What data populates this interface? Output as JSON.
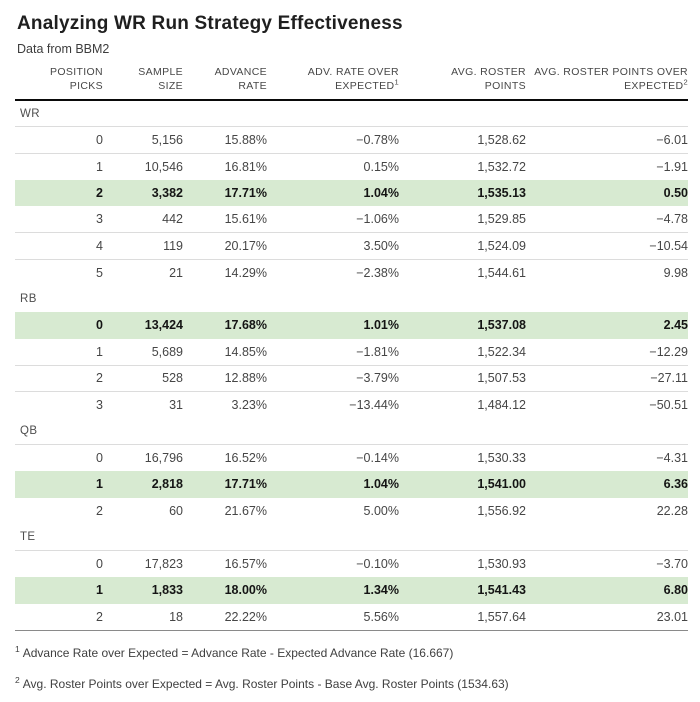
{
  "chart_data": {
    "type": "table",
    "title": "Analyzing WR Run Strategy Effectiveness",
    "subtitle": "Data from BBM2",
    "highlight_color": "#d7ead1",
    "columns": [
      {
        "line1": "POSITION",
        "line2": "PICKS",
        "sup": ""
      },
      {
        "line1": "SAMPLE",
        "line2": "SIZE",
        "sup": ""
      },
      {
        "line1": "ADVANCE",
        "line2": "RATE",
        "sup": ""
      },
      {
        "line1": "ADV. RATE OVER",
        "line2": "EXPECTED",
        "sup": "1"
      },
      {
        "line1": "AVG. ROSTER",
        "line2": "POINTS",
        "sup": ""
      },
      {
        "line1": "AVG. ROSTER POINTS OVER",
        "line2": "EXPECTED",
        "sup": "2"
      }
    ],
    "sections": [
      {
        "label": "WR",
        "rows": [
          {
            "highlight": false,
            "cells": [
              "0",
              "5,156",
              "15.88%",
              "−0.78%",
              "1,528.62",
              "−6.01"
            ]
          },
          {
            "highlight": false,
            "cells": [
              "1",
              "10,546",
              "16.81%",
              "0.15%",
              "1,532.72",
              "−1.91"
            ]
          },
          {
            "highlight": true,
            "cells": [
              "2",
              "3,382",
              "17.71%",
              "1.04%",
              "1,535.13",
              "0.50"
            ]
          },
          {
            "highlight": false,
            "cells": [
              "3",
              "442",
              "15.61%",
              "−1.06%",
              "1,529.85",
              "−4.78"
            ]
          },
          {
            "highlight": false,
            "cells": [
              "4",
              "119",
              "20.17%",
              "3.50%",
              "1,524.09",
              "−10.54"
            ]
          },
          {
            "highlight": false,
            "cells": [
              "5",
              "21",
              "14.29%",
              "−2.38%",
              "1,544.61",
              "9.98"
            ]
          }
        ]
      },
      {
        "label": "RB",
        "rows": [
          {
            "highlight": true,
            "cells": [
              "0",
              "13,424",
              "17.68%",
              "1.01%",
              "1,537.08",
              "2.45"
            ]
          },
          {
            "highlight": false,
            "cells": [
              "1",
              "5,689",
              "14.85%",
              "−1.81%",
              "1,522.34",
              "−12.29"
            ]
          },
          {
            "highlight": false,
            "cells": [
              "2",
              "528",
              "12.88%",
              "−3.79%",
              "1,507.53",
              "−27.11"
            ]
          },
          {
            "highlight": false,
            "cells": [
              "3",
              "31",
              "3.23%",
              "−13.44%",
              "1,484.12",
              "−50.51"
            ]
          }
        ]
      },
      {
        "label": "QB",
        "rows": [
          {
            "highlight": false,
            "cells": [
              "0",
              "16,796",
              "16.52%",
              "−0.14%",
              "1,530.33",
              "−4.31"
            ]
          },
          {
            "highlight": true,
            "cells": [
              "1",
              "2,818",
              "17.71%",
              "1.04%",
              "1,541.00",
              "6.36"
            ]
          },
          {
            "highlight": false,
            "cells": [
              "2",
              "60",
              "21.67%",
              "5.00%",
              "1,556.92",
              "22.28"
            ]
          }
        ]
      },
      {
        "label": "TE",
        "rows": [
          {
            "highlight": false,
            "cells": [
              "0",
              "17,823",
              "16.57%",
              "−0.10%",
              "1,530.93",
              "−3.70"
            ]
          },
          {
            "highlight": true,
            "cells": [
              "1",
              "1,833",
              "18.00%",
              "1.34%",
              "1,541.43",
              "6.80"
            ]
          },
          {
            "highlight": false,
            "cells": [
              "2",
              "18",
              "22.22%",
              "5.56%",
              "1,557.64",
              "23.01"
            ]
          }
        ]
      }
    ],
    "footnotes": [
      {
        "sup": "1",
        "text": "Advance Rate over Expected = Advance Rate - Expected Advance Rate (16.667)"
      },
      {
        "sup": "2",
        "text": "Avg. Roster Points over Expected = Avg. Roster Points - Base Avg. Roster Points (1534.63)"
      }
    ]
  }
}
